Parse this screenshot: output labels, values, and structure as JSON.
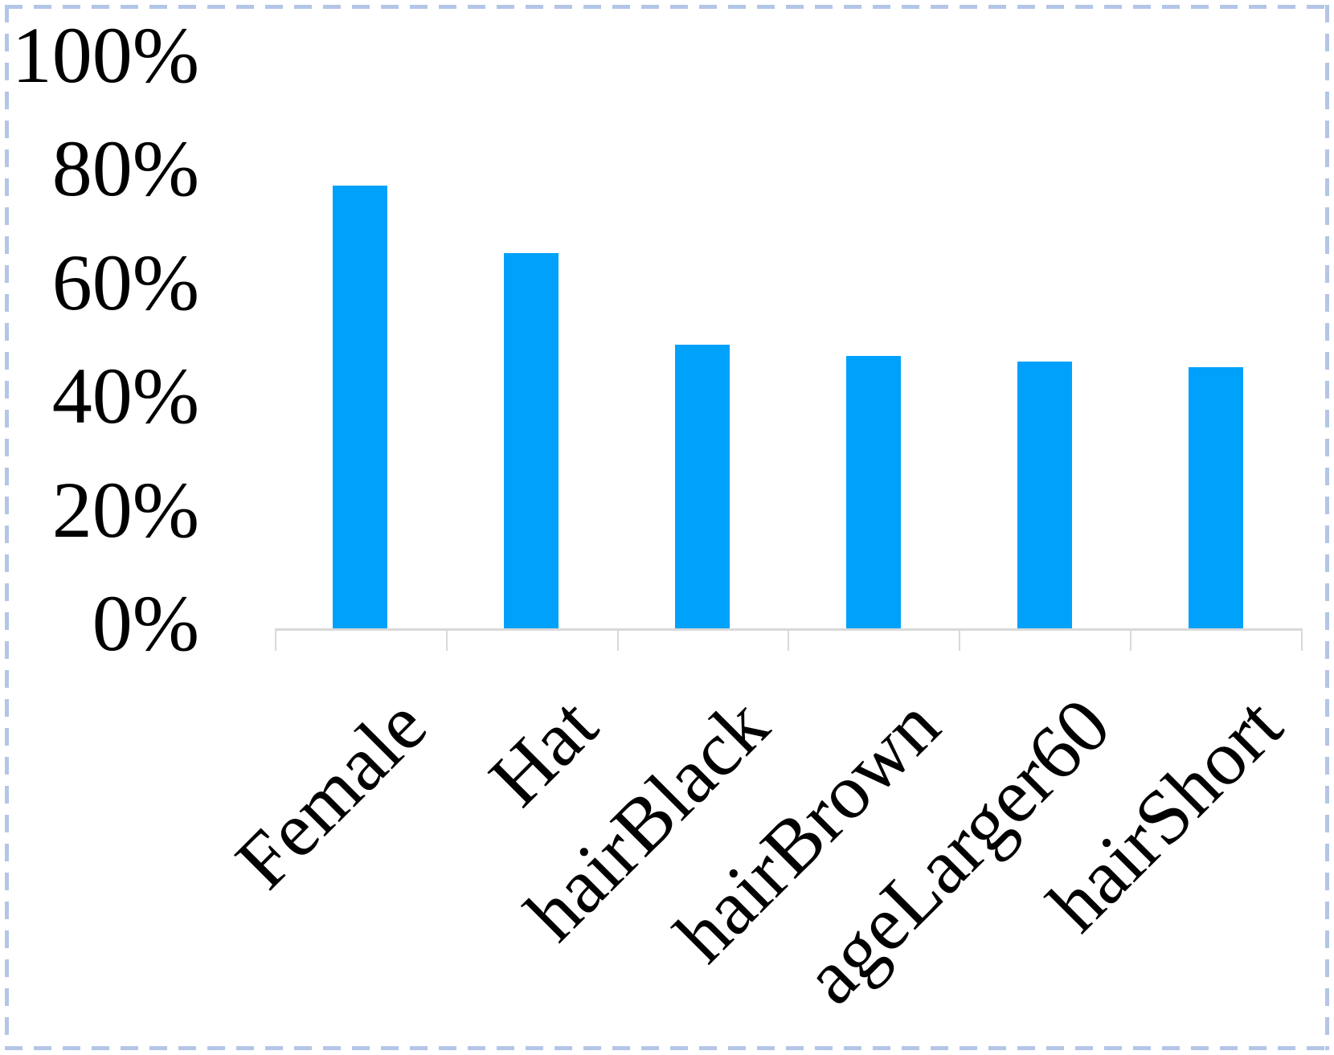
{
  "chart_data": {
    "type": "bar",
    "title": "",
    "xlabel": "",
    "ylabel": "",
    "categories": [
      "Female",
      "Hat",
      "hairBlack",
      "hairBrown",
      "ageLarger60",
      "hairShort"
    ],
    "values": [
      78,
      66,
      50,
      48,
      47,
      46
    ],
    "value_unit": "%",
    "ylim": [
      0,
      100
    ],
    "ytick_step": 20,
    "ytick_labels": [
      "0%",
      "20%",
      "40%",
      "60%",
      "80%",
      "100%"
    ],
    "grid": false,
    "legend": false,
    "x_labels_rotation_deg": 45,
    "colors": {
      "bar": "#00A1FB",
      "axis": "#D9D9D9",
      "text": "#000000",
      "frame_border": "#B4C6E7",
      "background": "#FFFFFF"
    }
  }
}
